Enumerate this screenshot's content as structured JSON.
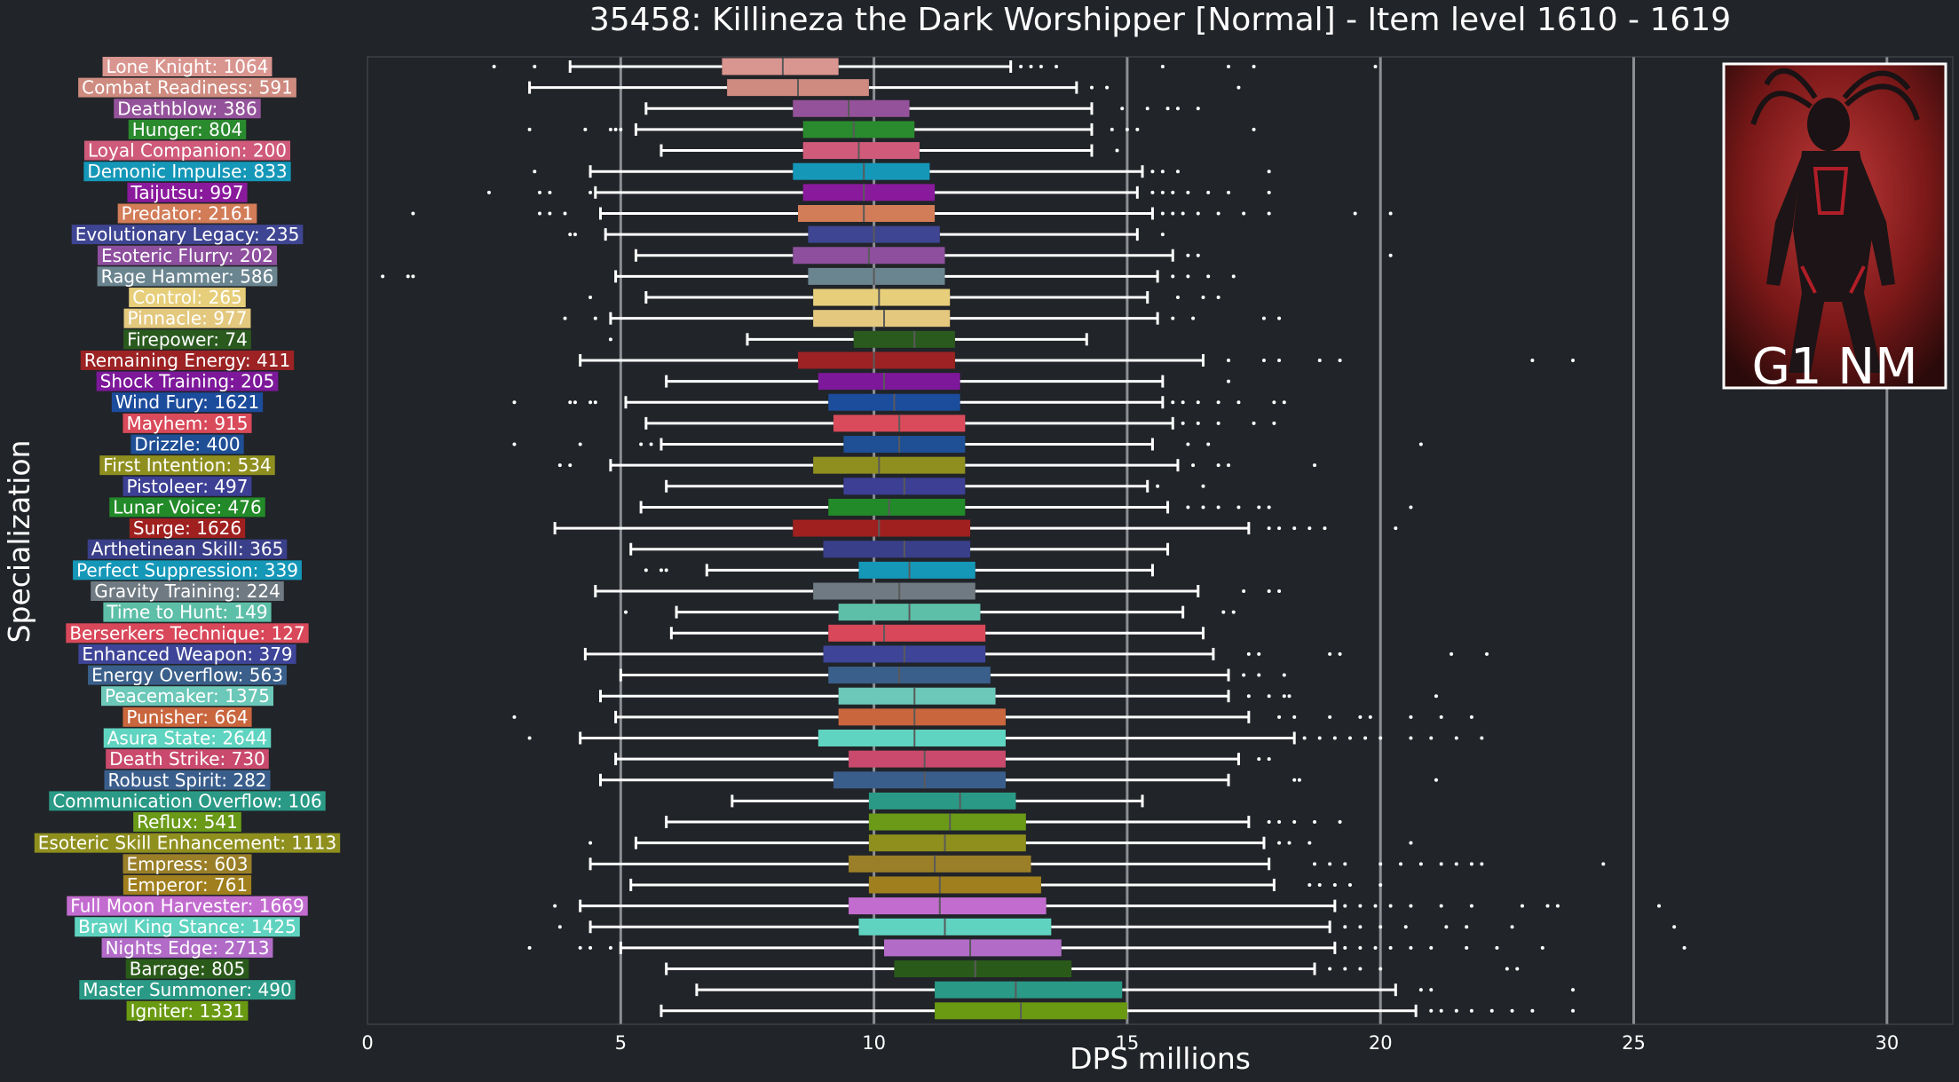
{
  "chart_data": {
    "type": "box",
    "title": "35458: Killineza the Dark Worshipper [Normal] - Item level 1610 - 1619",
    "xlabel": "DPS millions",
    "ylabel": "Specialization",
    "xlim": [
      0,
      31.3
    ],
    "xticks": [
      0,
      5,
      10,
      15,
      20,
      25,
      30
    ],
    "grid": "vertical lines at major ticks",
    "legend": "none",
    "overlay": {
      "label": "G1 NM",
      "placement": "top-right",
      "border": "#ffffff"
    },
    "series": [
      {
        "label": "Lone Knight: 1064",
        "color": "#d9958f",
        "whislo": 4.0,
        "q1": 7.0,
        "med": 8.2,
        "q3": 9.3,
        "whishi": 12.7,
        "fliers": [
          2.5,
          3.3,
          12.9,
          13.1,
          13.3,
          13.6,
          15.7,
          17.0,
          17.5,
          19.9
        ]
      },
      {
        "label": "Combat Readiness: 591",
        "color": "#cf8b80",
        "whislo": 3.2,
        "q1": 7.1,
        "med": 8.5,
        "q3": 9.9,
        "whishi": 14.0,
        "fliers": [
          14.3,
          14.6,
          17.2
        ]
      },
      {
        "label": "Deathblow: 386",
        "color": "#94529a",
        "whislo": 5.5,
        "q1": 8.4,
        "med": 9.5,
        "q3": 10.7,
        "whishi": 14.3,
        "fliers": [
          14.9,
          15.4,
          15.8,
          16.0,
          16.4
        ]
      },
      {
        "label": "Hunger: 804",
        "color": "#2a8a2e",
        "whislo": 5.3,
        "q1": 8.6,
        "med": 9.6,
        "q3": 10.8,
        "whishi": 14.3,
        "fliers": [
          3.2,
          4.3,
          4.8,
          4.9,
          5.0,
          14.7,
          15.0,
          15.2,
          17.5
        ]
      },
      {
        "label": "Loyal Companion: 200",
        "color": "#cf5a7a",
        "whislo": 5.8,
        "q1": 8.6,
        "med": 9.7,
        "q3": 10.9,
        "whishi": 14.3,
        "fliers": [
          14.8
        ]
      },
      {
        "label": "Demonic Impulse: 833",
        "color": "#1597b8",
        "whislo": 4.4,
        "q1": 8.4,
        "med": 9.8,
        "q3": 11.1,
        "whishi": 15.3,
        "fliers": [
          3.3,
          15.5,
          15.7,
          16.0,
          17.8
        ]
      },
      {
        "label": "Taijutsu: 997",
        "color": "#8a1a9c",
        "whislo": 4.5,
        "q1": 8.6,
        "med": 9.8,
        "q3": 11.2,
        "whishi": 15.2,
        "fliers": [
          2.4,
          3.4,
          3.6,
          4.4,
          15.5,
          15.7,
          15.9,
          16.2,
          16.6,
          17.0,
          17.8
        ]
      },
      {
        "label": "Predator: 2161",
        "color": "#d27c58",
        "whislo": 4.6,
        "q1": 8.5,
        "med": 9.8,
        "q3": 11.2,
        "whishi": 15.5,
        "fliers": [
          0.9,
          3.4,
          3.6,
          3.9,
          15.7,
          15.9,
          16.1,
          16.4,
          16.8,
          17.3,
          17.8,
          19.5,
          20.2
        ]
      },
      {
        "label": "Evolutionary Legacy: 235",
        "color": "#3e4592",
        "whislo": 4.7,
        "q1": 8.7,
        "med": 10.0,
        "q3": 11.3,
        "whishi": 15.2,
        "fliers": [
          4.0,
          4.1,
          15.7
        ]
      },
      {
        "label": "Esoteric Flurry: 202",
        "color": "#8e4f9e",
        "whislo": 5.3,
        "q1": 8.4,
        "med": 9.9,
        "q3": 11.4,
        "whishi": 15.9,
        "fliers": [
          16.2,
          16.4,
          20.2
        ]
      },
      {
        "label": "Rage Hammer: 586",
        "color": "#6b8590",
        "whislo": 4.9,
        "q1": 8.7,
        "med": 10.0,
        "q3": 11.4,
        "whishi": 15.6,
        "fliers": [
          0.3,
          0.8,
          0.9,
          15.9,
          16.2,
          16.6,
          17.1
        ]
      },
      {
        "label": "Control: 265",
        "color": "#e7ce7a",
        "whislo": 5.5,
        "q1": 8.8,
        "med": 10.1,
        "q3": 11.5,
        "whishi": 15.4,
        "fliers": [
          4.4,
          16.0,
          16.5,
          16.8
        ]
      },
      {
        "label": "Pinnacle: 977",
        "color": "#e3c87e",
        "whislo": 4.8,
        "q1": 8.8,
        "med": 10.2,
        "q3": 11.5,
        "whishi": 15.6,
        "fliers": [
          3.9,
          4.5,
          15.9,
          16.3,
          17.7,
          18.0
        ]
      },
      {
        "label": "Firepower: 74",
        "color": "#2a5a1e",
        "whislo": 7.5,
        "q1": 9.6,
        "med": 10.8,
        "q3": 11.6,
        "whishi": 14.2,
        "fliers": [
          4.8
        ]
      },
      {
        "label": "Remaining Energy: 411",
        "color": "#9c2224",
        "whislo": 4.2,
        "q1": 8.5,
        "med": 10.0,
        "q3": 11.6,
        "whishi": 16.5,
        "fliers": [
          17.0,
          17.7,
          18.0,
          18.8,
          19.2,
          23.0,
          23.8
        ]
      },
      {
        "label": "Shock Training: 205",
        "color": "#7d189a",
        "whislo": 5.9,
        "q1": 8.9,
        "med": 10.2,
        "q3": 11.7,
        "whishi": 15.7,
        "fliers": [
          17.0
        ]
      },
      {
        "label": "Wind Fury: 1621",
        "color": "#1c4c9c",
        "whislo": 5.1,
        "q1": 9.1,
        "med": 10.4,
        "q3": 11.7,
        "whishi": 15.7,
        "fliers": [
          2.9,
          4.0,
          4.1,
          4.4,
          4.5,
          15.9,
          16.1,
          16.4,
          16.8,
          17.2,
          17.9,
          18.1
        ]
      },
      {
        "label": "Mayhem: 915",
        "color": "#d94a5a",
        "whislo": 5.5,
        "q1": 9.2,
        "med": 10.5,
        "q3": 11.8,
        "whishi": 15.9,
        "fliers": [
          16.1,
          16.4,
          16.8,
          17.5,
          17.9
        ]
      },
      {
        "label": "Drizzle: 400",
        "color": "#1f4f95",
        "whislo": 5.8,
        "q1": 9.4,
        "med": 10.5,
        "q3": 11.8,
        "whishi": 15.5,
        "fliers": [
          2.9,
          4.2,
          5.4,
          5.6,
          16.2,
          16.6,
          20.8
        ]
      },
      {
        "label": "First Intention: 534",
        "color": "#8f8f20",
        "whislo": 4.8,
        "q1": 8.8,
        "med": 10.1,
        "q3": 11.8,
        "whishi": 16.0,
        "fliers": [
          3.8,
          4.0,
          16.3,
          16.8,
          17.0,
          18.7
        ]
      },
      {
        "label": "Pistoleer: 497",
        "color": "#3c3f94",
        "whislo": 5.9,
        "q1": 9.4,
        "med": 10.6,
        "q3": 11.8,
        "whishi": 15.4,
        "fliers": [
          15.6,
          16.5
        ]
      },
      {
        "label": "Lunar Voice: 476",
        "color": "#228a28",
        "whislo": 5.4,
        "q1": 9.1,
        "med": 10.3,
        "q3": 11.8,
        "whishi": 15.8,
        "fliers": [
          16.2,
          16.5,
          16.8,
          17.2,
          17.6,
          17.8,
          20.6
        ]
      },
      {
        "label": "Surge: 1626",
        "color": "#a02020",
        "whislo": 3.7,
        "q1": 8.4,
        "med": 10.1,
        "q3": 11.9,
        "whishi": 17.4,
        "fliers": [
          17.8,
          18.0,
          18.3,
          18.6,
          18.9,
          20.3
        ]
      },
      {
        "label": "Arthetinean Skill: 365",
        "color": "#3a3f8a",
        "whislo": 5.2,
        "q1": 9.0,
        "med": 10.6,
        "q3": 11.9,
        "whishi": 15.8,
        "fliers": []
      },
      {
        "label": "Perfect Suppression: 339",
        "color": "#1597b8",
        "whislo": 6.7,
        "q1": 9.7,
        "med": 10.7,
        "q3": 12.0,
        "whishi": 15.5,
        "fliers": [
          5.5,
          5.8,
          5.9
        ]
      },
      {
        "label": "Gravity Training: 224",
        "color": "#6f7a82",
        "whislo": 4.5,
        "q1": 8.8,
        "med": 10.5,
        "q3": 12.0,
        "whishi": 16.4,
        "fliers": [
          17.3,
          17.8,
          18.0
        ]
      },
      {
        "label": "Time to Hunt: 149",
        "color": "#5dbfa8",
        "whislo": 6.1,
        "q1": 9.3,
        "med": 10.7,
        "q3": 12.1,
        "whishi": 16.1,
        "fliers": [
          5.1,
          16.9,
          17.1
        ]
      },
      {
        "label": "Berserkers Technique: 127",
        "color": "#d9485a",
        "whislo": 6.0,
        "q1": 9.1,
        "med": 10.2,
        "q3": 12.2,
        "whishi": 16.5,
        "fliers": []
      },
      {
        "label": "Enhanced Weapon: 379",
        "color": "#3e4598",
        "whislo": 4.3,
        "q1": 9.0,
        "med": 10.6,
        "q3": 12.2,
        "whishi": 16.7,
        "fliers": [
          17.4,
          17.6,
          19.0,
          19.2,
          21.4,
          22.1
        ]
      },
      {
        "label": "Energy Overflow: 563",
        "color": "#3a5f8a",
        "whislo": 5.0,
        "q1": 9.1,
        "med": 10.5,
        "q3": 12.3,
        "whishi": 17.0,
        "fliers": [
          17.3,
          17.6,
          18.1
        ]
      },
      {
        "label": "Peacemaker: 1375",
        "color": "#6cc8b8",
        "whislo": 4.6,
        "q1": 9.3,
        "med": 10.8,
        "q3": 12.4,
        "whishi": 17.0,
        "fliers": [
          17.4,
          17.8,
          18.1,
          18.2,
          21.1
        ]
      },
      {
        "label": "Punisher: 664",
        "color": "#c9663e",
        "whislo": 4.9,
        "q1": 9.3,
        "med": 10.8,
        "q3": 12.6,
        "whishi": 17.4,
        "fliers": [
          2.9,
          18.0,
          18.3,
          19.0,
          19.6,
          19.8,
          20.6,
          21.2,
          21.8
        ]
      },
      {
        "label": "Asura State: 2644",
        "color": "#5fd4c0",
        "whislo": 4.2,
        "q1": 8.9,
        "med": 10.8,
        "q3": 12.6,
        "whishi": 18.3,
        "fliers": [
          3.2,
          18.5,
          18.8,
          19.1,
          19.4,
          19.7,
          20.0,
          20.6,
          21.0,
          21.5,
          22.0
        ]
      },
      {
        "label": "Death Strike: 730",
        "color": "#c94a6c",
        "whislo": 4.9,
        "q1": 9.5,
        "med": 11.0,
        "q3": 12.6,
        "whishi": 17.2,
        "fliers": [
          17.6,
          17.8
        ]
      },
      {
        "label": "Robust Spirit: 282",
        "color": "#3a5e8c",
        "whislo": 4.6,
        "q1": 9.2,
        "med": 11.0,
        "q3": 12.6,
        "whishi": 17.0,
        "fliers": [
          18.3,
          18.4,
          21.1
        ]
      },
      {
        "label": "Communication Overflow: 106",
        "color": "#2a9a86",
        "whislo": 7.2,
        "q1": 9.9,
        "med": 11.7,
        "q3": 12.8,
        "whishi": 15.3,
        "fliers": []
      },
      {
        "label": "Reflux: 541",
        "color": "#6a9a18",
        "whislo": 5.9,
        "q1": 9.9,
        "med": 11.5,
        "q3": 13.0,
        "whishi": 17.4,
        "fliers": [
          17.8,
          18.0,
          18.3,
          18.7,
          19.2
        ]
      },
      {
        "label": "Esoteric Skill Enhancement: 1113",
        "color": "#8f8f1e",
        "whislo": 5.3,
        "q1": 9.9,
        "med": 11.4,
        "q3": 13.0,
        "whishi": 17.7,
        "fliers": [
          4.4,
          18.0,
          18.2,
          18.6,
          20.6
        ]
      },
      {
        "label": "Empress: 603",
        "color": "#9a7f28",
        "whislo": 4.4,
        "q1": 9.5,
        "med": 11.2,
        "q3": 13.1,
        "whishi": 17.8,
        "fliers": [
          18.7,
          19.0,
          19.3,
          20.0,
          20.4,
          20.8,
          21.2,
          21.5,
          21.8,
          22.0,
          24.4
        ]
      },
      {
        "label": "Emperor: 761",
        "color": "#a07f1e",
        "whislo": 5.2,
        "q1": 9.9,
        "med": 11.3,
        "q3": 13.3,
        "whishi": 17.9,
        "fliers": [
          18.6,
          18.8,
          19.1,
          19.4,
          20.0
        ]
      },
      {
        "label": "Full Moon Harvester: 1669",
        "color": "#c36cd0",
        "whislo": 4.2,
        "q1": 9.5,
        "med": 11.3,
        "q3": 13.4,
        "whishi": 19.1,
        "fliers": [
          3.7,
          19.3,
          19.6,
          19.9,
          20.2,
          20.6,
          21.2,
          21.8,
          22.8,
          23.3,
          23.5,
          25.5
        ]
      },
      {
        "label": "Brawl King Stance: 1425",
        "color": "#5fd3c0",
        "whislo": 4.4,
        "q1": 9.7,
        "med": 11.4,
        "q3": 13.5,
        "whishi": 19.0,
        "fliers": [
          3.8,
          19.3,
          19.6,
          20.0,
          20.5,
          21.3,
          21.7,
          22.6,
          25.8
        ]
      },
      {
        "label": "Nights Edge: 2713",
        "color": "#b26cc8",
        "whislo": 5.0,
        "q1": 10.2,
        "med": 11.9,
        "q3": 13.7,
        "whishi": 19.1,
        "fliers": [
          3.2,
          4.2,
          4.4,
          4.8,
          19.3,
          19.6,
          19.9,
          20.2,
          20.6,
          21.0,
          21.7,
          22.3,
          23.2,
          26.0
        ]
      },
      {
        "label": "Barrage: 805",
        "color": "#2a5a1a",
        "whislo": 5.9,
        "q1": 10.4,
        "med": 12.0,
        "q3": 13.9,
        "whishi": 18.7,
        "fliers": [
          19.0,
          19.3,
          19.6,
          20.0,
          22.5,
          22.7
        ]
      },
      {
        "label": "Master Summoner: 490",
        "color": "#2a9a86",
        "whislo": 6.5,
        "q1": 11.2,
        "med": 12.8,
        "q3": 14.9,
        "whishi": 20.3,
        "fliers": [
          20.8,
          21.0,
          23.8
        ]
      },
      {
        "label": "Igniter: 1331",
        "color": "#6a9a12",
        "whislo": 5.8,
        "q1": 11.2,
        "med": 12.9,
        "q3": 15.0,
        "whishi": 20.7,
        "fliers": [
          21.0,
          21.2,
          21.5,
          21.8,
          22.2,
          22.6,
          23.0,
          23.8
        ]
      }
    ]
  }
}
